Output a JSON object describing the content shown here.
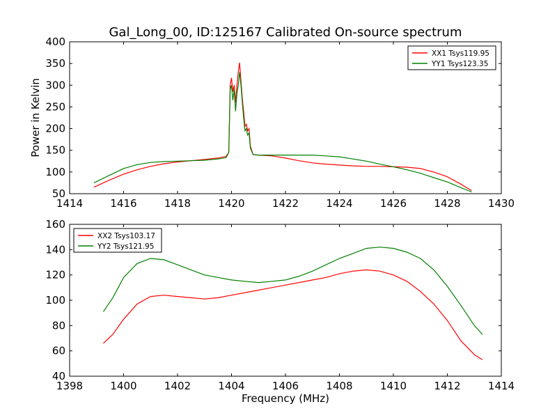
{
  "chart_data": [
    {
      "type": "line",
      "title": "Gal_Long_00, ID:125167 Calibrated On-source spectrum",
      "xlabel": "",
      "ylabel": "Power in Kelvin",
      "xlim": [
        1414,
        1430
      ],
      "ylim": [
        50,
        400
      ],
      "xticks": [
        1414,
        1416,
        1418,
        1420,
        1422,
        1424,
        1426,
        1428,
        1430
      ],
      "yticks": [
        50,
        100,
        150,
        200,
        250,
        300,
        350,
        400
      ],
      "grid": false,
      "legend_position": "top-right",
      "series": [
        {
          "name": "XX1 Tsys119.95",
          "color": "#ff0000",
          "points": [
            [
              1414.9,
              65
            ],
            [
              1415.5,
              82
            ],
            [
              1416,
              95
            ],
            [
              1416.5,
              105
            ],
            [
              1417,
              113
            ],
            [
              1417.5,
              119
            ],
            [
              1418,
              123
            ],
            [
              1418.5,
              126
            ],
            [
              1419,
              129
            ],
            [
              1419.5,
              132
            ],
            [
              1419.8,
              136
            ],
            [
              1419.9,
              145
            ],
            [
              1419.95,
              300
            ],
            [
              1420,
              317
            ],
            [
              1420.05,
              285
            ],
            [
              1420.1,
              300
            ],
            [
              1420.15,
              260
            ],
            [
              1420.2,
              300
            ],
            [
              1420.25,
              330
            ],
            [
              1420.3,
              352
            ],
            [
              1420.35,
              310
            ],
            [
              1420.4,
              270
            ],
            [
              1420.45,
              240
            ],
            [
              1420.5,
              205
            ],
            [
              1420.55,
              210
            ],
            [
              1420.6,
              195
            ],
            [
              1420.65,
              200
            ],
            [
              1420.7,
              160
            ],
            [
              1420.8,
              140
            ],
            [
              1421,
              139
            ],
            [
              1421.5,
              137
            ],
            [
              1422,
              132
            ],
            [
              1422.5,
              126
            ],
            [
              1423,
              121
            ],
            [
              1423.5,
              118
            ],
            [
              1424,
              116
            ],
            [
              1424.5,
              114
            ],
            [
              1425,
              113
            ],
            [
              1425.5,
              113
            ],
            [
              1426,
              112
            ],
            [
              1426.5,
              111
            ],
            [
              1427,
              108
            ],
            [
              1427.5,
              100
            ],
            [
              1428,
              89
            ],
            [
              1428.5,
              72
            ],
            [
              1428.9,
              57
            ]
          ]
        },
        {
          "name": "YY1 Tsys123.35",
          "color": "#008000",
          "points": [
            [
              1414.9,
              75
            ],
            [
              1415.5,
              93
            ],
            [
              1416,
              108
            ],
            [
              1416.5,
              117
            ],
            [
              1417,
              122
            ],
            [
              1417.5,
              124
            ],
            [
              1418,
              125
            ],
            [
              1418.5,
              126
            ],
            [
              1419,
              127
            ],
            [
              1419.5,
              130
            ],
            [
              1419.8,
              133
            ],
            [
              1419.9,
              145
            ],
            [
              1419.95,
              290
            ],
            [
              1420,
              300
            ],
            [
              1420.05,
              265
            ],
            [
              1420.1,
              290
            ],
            [
              1420.15,
              240
            ],
            [
              1420.2,
              280
            ],
            [
              1420.25,
              300
            ],
            [
              1420.3,
              330
            ],
            [
              1420.35,
              300
            ],
            [
              1420.4,
              260
            ],
            [
              1420.45,
              225
            ],
            [
              1420.5,
              195
            ],
            [
              1420.55,
              200
            ],
            [
              1420.6,
              185
            ],
            [
              1420.65,
              190
            ],
            [
              1420.7,
              155
            ],
            [
              1420.8,
              140
            ],
            [
              1421,
              139
            ],
            [
              1421.5,
              139
            ],
            [
              1422,
              139
            ],
            [
              1422.5,
              139
            ],
            [
              1423,
              139
            ],
            [
              1423.5,
              137
            ],
            [
              1424,
              135
            ],
            [
              1424.5,
              130
            ],
            [
              1425,
              125
            ],
            [
              1425.5,
              118
            ],
            [
              1426,
              112
            ],
            [
              1426.5,
              105
            ],
            [
              1427,
              97
            ],
            [
              1427.5,
              87
            ],
            [
              1428,
              77
            ],
            [
              1428.5,
              64
            ],
            [
              1428.9,
              54
            ]
          ]
        }
      ]
    },
    {
      "type": "line",
      "title": "",
      "xlabel": "Frequency (MHz)",
      "ylabel": "",
      "xlim": [
        1398,
        1414
      ],
      "ylim": [
        40,
        160
      ],
      "xticks": [
        1398,
        1400,
        1402,
        1404,
        1406,
        1408,
        1410,
        1412,
        1414
      ],
      "yticks": [
        40,
        60,
        80,
        100,
        120,
        140,
        160
      ],
      "grid": false,
      "legend_position": "top-left",
      "series": [
        {
          "name": "XX2 Tsys103.17",
          "color": "#ff0000",
          "points": [
            [
              1399.25,
              66
            ],
            [
              1399.6,
              73
            ],
            [
              1400,
              85
            ],
            [
              1400.5,
              97
            ],
            [
              1401,
              103
            ],
            [
              1401.5,
              104
            ],
            [
              1402,
              103
            ],
            [
              1402.5,
              102
            ],
            [
              1403,
              101
            ],
            [
              1403.5,
              102
            ],
            [
              1404,
              104
            ],
            [
              1404.5,
              106
            ],
            [
              1405,
              108
            ],
            [
              1405.5,
              110
            ],
            [
              1406,
              112
            ],
            [
              1406.5,
              114
            ],
            [
              1407,
              116
            ],
            [
              1407.5,
              118
            ],
            [
              1408,
              121
            ],
            [
              1408.5,
              123
            ],
            [
              1409,
              124
            ],
            [
              1409.5,
              123
            ],
            [
              1410,
              120
            ],
            [
              1410.5,
              115
            ],
            [
              1411,
              107
            ],
            [
              1411.5,
              97
            ],
            [
              1412,
              84
            ],
            [
              1412.5,
              68
            ],
            [
              1413,
              57
            ],
            [
              1413.3,
              53
            ]
          ]
        },
        {
          "name": "YY2 Tsys121.95",
          "color": "#008000",
          "points": [
            [
              1399.25,
              91
            ],
            [
              1399.6,
              102
            ],
            [
              1400,
              118
            ],
            [
              1400.5,
              129
            ],
            [
              1401,
              133
            ],
            [
              1401.5,
              132
            ],
            [
              1402,
              128
            ],
            [
              1402.5,
              124
            ],
            [
              1403,
              120
            ],
            [
              1403.5,
              118
            ],
            [
              1404,
              116
            ],
            [
              1404.5,
              115
            ],
            [
              1405,
              114
            ],
            [
              1405.5,
              115
            ],
            [
              1406,
              116
            ],
            [
              1406.5,
              119
            ],
            [
              1407,
              123
            ],
            [
              1407.5,
              128
            ],
            [
              1408,
              133
            ],
            [
              1408.5,
              137
            ],
            [
              1409,
              141
            ],
            [
              1409.5,
              142
            ],
            [
              1410,
              141
            ],
            [
              1410.5,
              138
            ],
            [
              1411,
              133
            ],
            [
              1411.5,
              124
            ],
            [
              1412,
              111
            ],
            [
              1412.5,
              96
            ],
            [
              1413,
              80
            ],
            [
              1413.3,
              73
            ]
          ]
        }
      ]
    }
  ]
}
